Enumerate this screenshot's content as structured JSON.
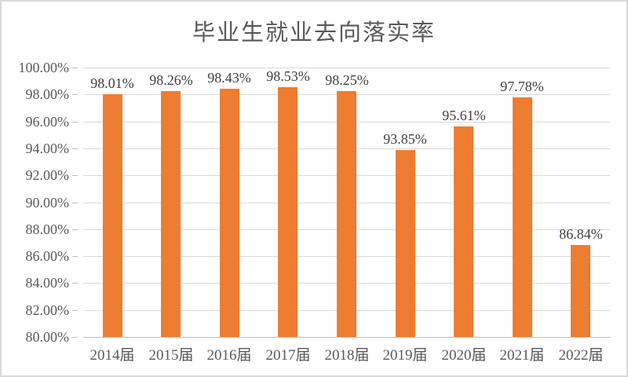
{
  "title": "毕业生就业去向落实率",
  "colors": {
    "bar": "#ED7D31",
    "gridline": "#D9D9D9",
    "axis_line": "#BFBFBF",
    "title_text": "#595959",
    "axis_text": "#595959",
    "data_label_text": "#404040",
    "canvas_border": "#D9D9D9",
    "background": "#FFFFFF"
  },
  "chart_data": {
    "type": "bar",
    "title": "毕业生就业去向落实率",
    "xlabel": "",
    "ylabel": "",
    "categories": [
      "2014届",
      "2015届",
      "2016届",
      "2017届",
      "2018届",
      "2019届",
      "2020届",
      "2021届",
      "2022届"
    ],
    "values": [
      98.01,
      98.26,
      98.43,
      98.53,
      98.25,
      93.85,
      95.61,
      97.78,
      86.84
    ],
    "data_labels": [
      "98.01%",
      "98.26%",
      "98.43%",
      "98.53%",
      "98.25%",
      "93.85%",
      "95.61%",
      "97.78%",
      "86.84%"
    ],
    "ylim": [
      80,
      100
    ],
    "ytick_step": 2,
    "yticks": [
      {
        "value": 100,
        "label": "100.00%"
      },
      {
        "value": 98,
        "label": "98.00%"
      },
      {
        "value": 96,
        "label": "96.00%"
      },
      {
        "value": 94,
        "label": "94.00%"
      },
      {
        "value": 92,
        "label": "92.00%"
      },
      {
        "value": 90,
        "label": "90.00%"
      },
      {
        "value": 88,
        "label": "88.00%"
      },
      {
        "value": 86,
        "label": "86.00%"
      },
      {
        "value": 84,
        "label": "84.00%"
      },
      {
        "value": 82,
        "label": "82.00%"
      },
      {
        "value": 80,
        "label": "80.00%"
      }
    ],
    "grid": true,
    "legend": "none"
  }
}
